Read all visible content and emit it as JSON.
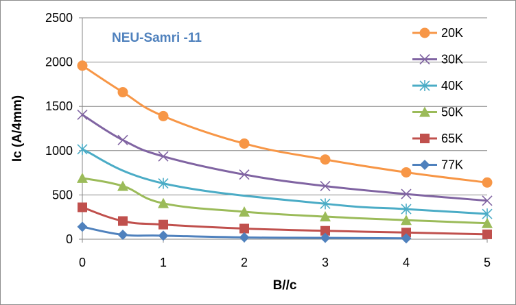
{
  "chart_data": {
    "type": "line",
    "title": "",
    "annotation": "NEU-Samri -11",
    "annotation_color": "#4f81bd",
    "xlabel": "B//c",
    "ylabel": "Ic (A/4mm)",
    "xlim": [
      0,
      5
    ],
    "ylim": [
      0,
      2500
    ],
    "x_ticks": [
      "0",
      "1",
      "2",
      "3",
      "4",
      "5"
    ],
    "y_ticks": [
      "0",
      "500",
      "1000",
      "1500",
      "2000",
      "2500"
    ],
    "grid": "horizontal",
    "legend_position": "right",
    "series": [
      {
        "name": "20K",
        "color": "#f79646",
        "marker": "circle",
        "x": [
          0,
          0.5,
          1,
          2,
          3,
          4,
          5
        ],
        "values": [
          1960,
          1660,
          1390,
          1080,
          900,
          755,
          640
        ]
      },
      {
        "name": "30K",
        "color": "#8064a2",
        "marker": "x",
        "x": [
          0,
          0.5,
          1,
          2,
          3,
          4,
          5
        ],
        "values": [
          1405,
          1120,
          935,
          730,
          600,
          510,
          435
        ]
      },
      {
        "name": "40K",
        "color": "#4bacc6",
        "marker": "star",
        "x": [
          0,
          1,
          3,
          4,
          5
        ],
        "values": [
          1015,
          630,
          400,
          340,
          285
        ]
      },
      {
        "name": "50K",
        "color": "#9bbb59",
        "marker": "triangle",
        "x": [
          0,
          0.5,
          1,
          2,
          3,
          4,
          5
        ],
        "values": [
          690,
          600,
          405,
          310,
          255,
          215,
          180
        ]
      },
      {
        "name": "65K",
        "color": "#c0504d",
        "marker": "square",
        "x": [
          0,
          0.5,
          1,
          2,
          3,
          4,
          5
        ],
        "values": [
          360,
          205,
          165,
          120,
          95,
          75,
          55
        ]
      },
      {
        "name": "77K",
        "color": "#4f81bd",
        "marker": "diamond",
        "x": [
          0,
          0.5,
          1,
          2,
          3,
          4
        ],
        "values": [
          140,
          50,
          40,
          20,
          15,
          10
        ]
      }
    ]
  }
}
